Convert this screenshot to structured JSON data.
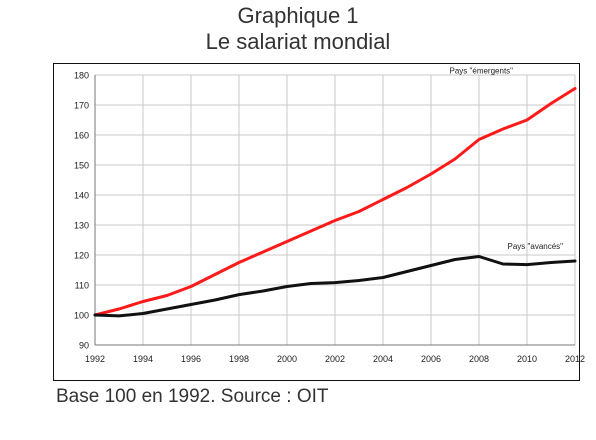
{
  "title": "Graphique 1",
  "subtitle": "Le salariat mondial",
  "caption": "Base 100 en 1992. Source : OIT",
  "chart_data": {
    "type": "line",
    "x": [
      1992,
      1993,
      1994,
      1995,
      1996,
      1997,
      1998,
      1999,
      2000,
      2001,
      2002,
      2003,
      2004,
      2005,
      2006,
      2007,
      2008,
      2009,
      2010,
      2011,
      2012
    ],
    "xticks": [
      1992,
      1994,
      1996,
      1998,
      2000,
      2002,
      2004,
      2006,
      2008,
      2010,
      2012
    ],
    "yticks": [
      90,
      100,
      110,
      120,
      130,
      140,
      150,
      160,
      170,
      180
    ],
    "xlim": [
      1992,
      2012
    ],
    "ylim": [
      90,
      180
    ],
    "grid": true,
    "series": [
      {
        "name": "Pays \"émergents\"",
        "color": "#ff1a1a",
        "values": [
          100,
          102,
          104.5,
          106.5,
          109.5,
          113.5,
          117.5,
          121,
          124.5,
          128,
          131.5,
          134.5,
          138.5,
          142.5,
          147,
          152,
          158.5,
          162,
          165,
          170.5,
          175.5
        ]
      },
      {
        "name": "Pays \"avancés\"",
        "color": "#111111",
        "values": [
          100,
          99.7,
          100.5,
          102,
          103.5,
          105,
          106.8,
          108,
          109.5,
          110.5,
          110.8,
          111.5,
          112.5,
          114.5,
          116.5,
          118.5,
          119.5,
          117,
          116.8,
          117.5,
          118
        ]
      }
    ]
  }
}
